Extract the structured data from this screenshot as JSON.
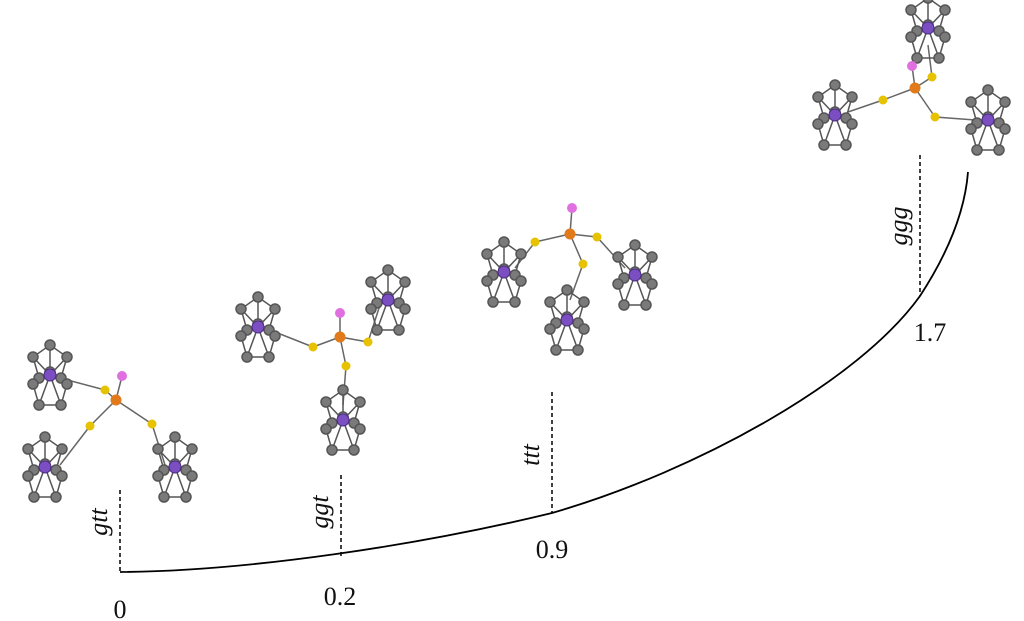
{
  "conformers": [
    {
      "label": "gtt",
      "energy": 0
    },
    {
      "label": "ggt",
      "energy": 0.2
    },
    {
      "label": "ttt",
      "energy": 0.9
    },
    {
      "label": "ggg",
      "energy": 1.7
    }
  ]
}
